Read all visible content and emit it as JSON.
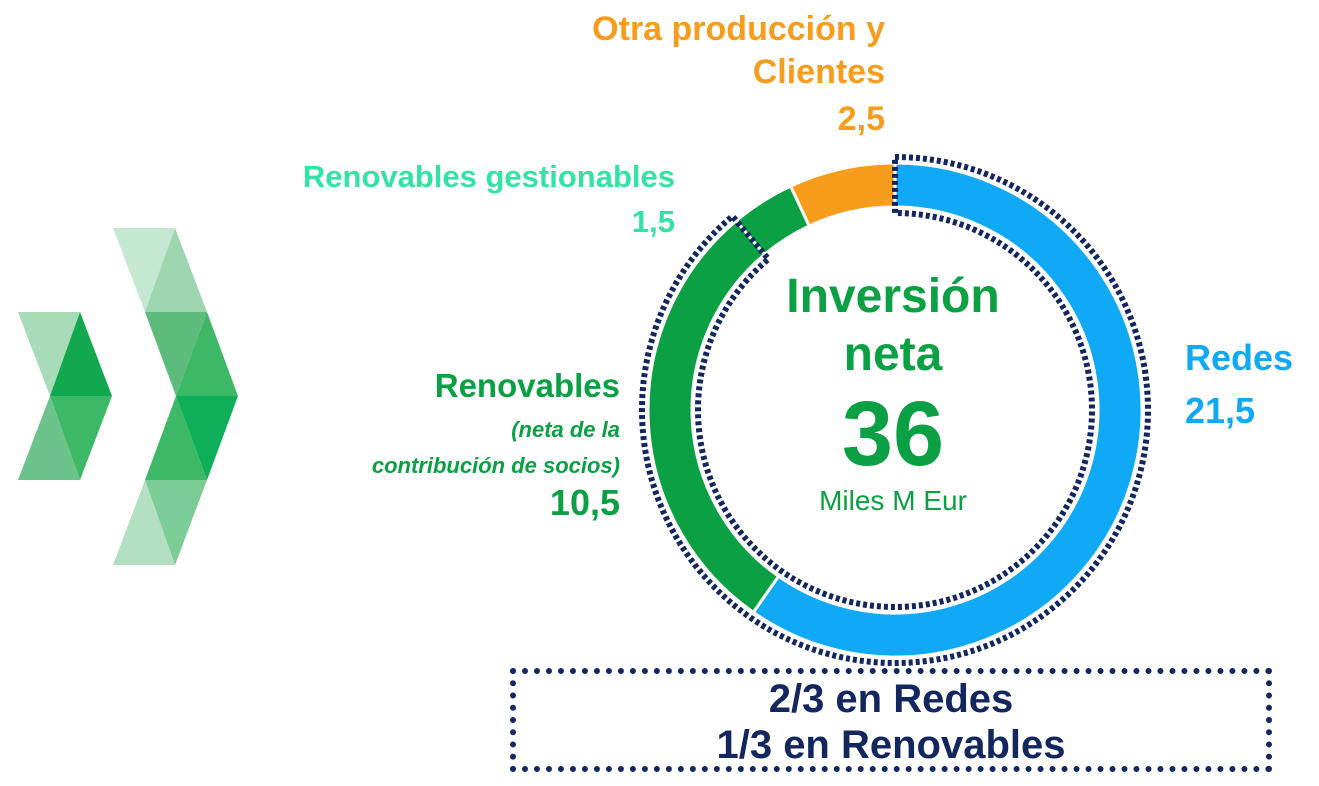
{
  "chart_data": {
    "type": "donut",
    "categories": [
      "Redes",
      "Renovables",
      "Renovables gestionables",
      "Otra producción y Clientes"
    ],
    "values": [
      21.5,
      10.5,
      1.5,
      2.5
    ],
    "value_labels": [
      "21,5",
      "10,5",
      "1,5",
      "2,5"
    ],
    "colors": [
      "#0fa9f5",
      "#0aa043",
      "#0aa043",
      "#f89c1c"
    ],
    "label_colors": [
      "#0fa9f5",
      "#0aa043",
      "#33e3a4",
      "#f89c1c"
    ],
    "renovables_note": [
      "(neta de la",
      "contribución de socios)"
    ],
    "center": {
      "title": "Inversión neta",
      "total": 36,
      "unit": "Miles M Eur"
    },
    "note_lines": [
      "2/3 en Redes",
      "1/3 en Renovables"
    ]
  }
}
